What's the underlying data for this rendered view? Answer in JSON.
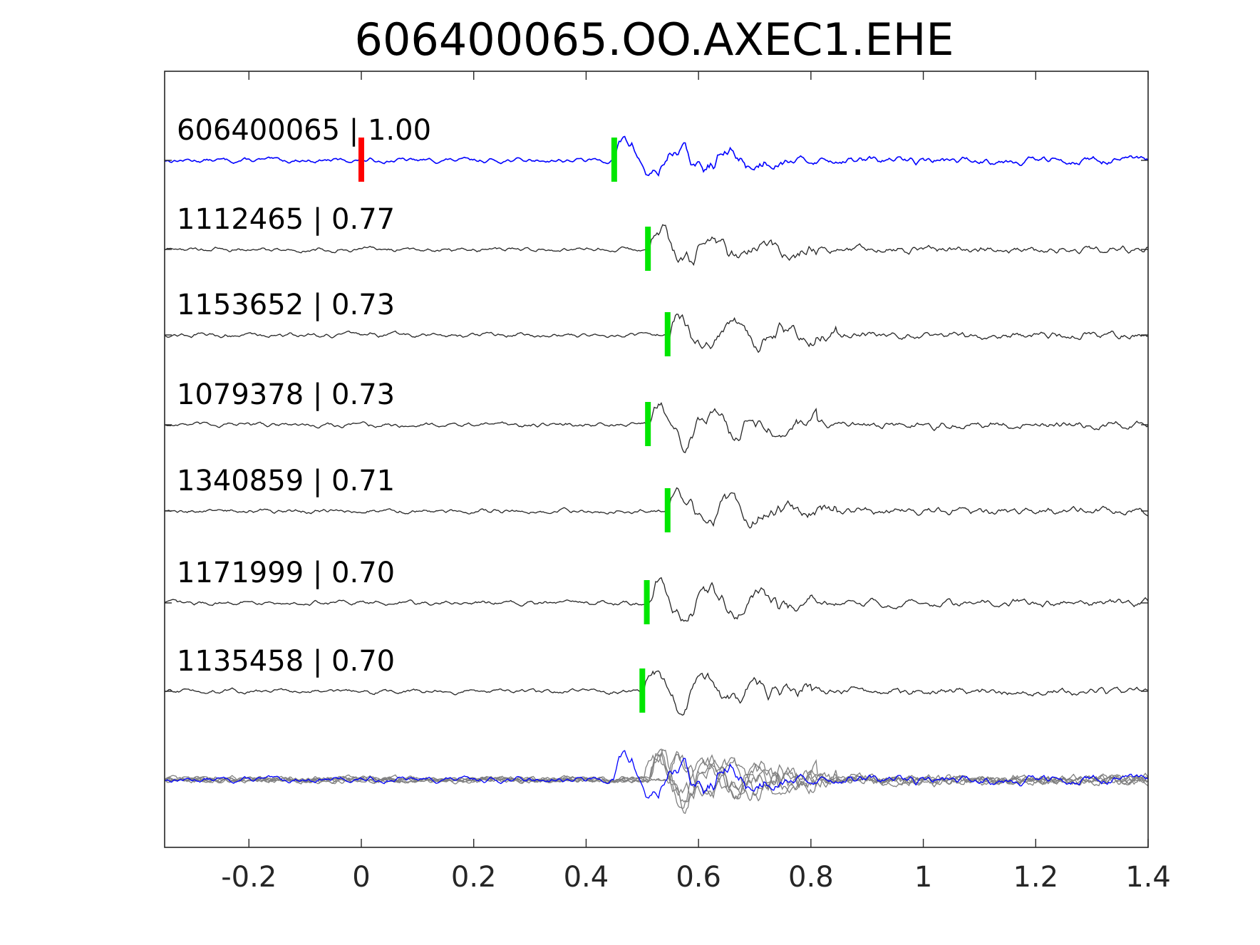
{
  "chart_data": {
    "type": "line",
    "title": "606400065.OO.AXEC1.EHE",
    "xlabel": "",
    "ylabel": "",
    "xlim": [
      -0.35,
      1.4
    ],
    "xticks": [
      -0.2,
      0,
      0.2,
      0.4,
      0.6,
      0.8,
      1,
      1.2,
      1.4
    ],
    "xtick_labels": [
      "-0.2",
      "0",
      "0.2",
      "0.4",
      "0.6",
      "0.8",
      "1",
      "1.2",
      "1.4"
    ],
    "y_axis_ticks_shown": false,
    "grid": false,
    "legend": "none",
    "colors": {
      "template": "#0000ff",
      "match": "#262626",
      "stack": "#808080",
      "origin_marker": "#ff0000",
      "pick_marker": "#00e600"
    },
    "series": [
      {
        "label": "606400065 | 1.00",
        "pick": 0.45,
        "origin": 0.0,
        "color": "#0000ff"
      },
      {
        "label": "1112465 | 0.77",
        "pick": 0.51,
        "color": "#262626"
      },
      {
        "label": "1153652 | 0.73",
        "pick": 0.545,
        "color": "#262626"
      },
      {
        "label": "1079378 | 0.73",
        "pick": 0.51,
        "color": "#262626"
      },
      {
        "label": "1340859 | 0.71",
        "pick": 0.545,
        "color": "#262626"
      },
      {
        "label": "1171999 | 0.70",
        "pick": 0.508,
        "color": "#262626"
      },
      {
        "label": "1135458 | 0.70",
        "pick": 0.5,
        "color": "#262626"
      }
    ]
  }
}
